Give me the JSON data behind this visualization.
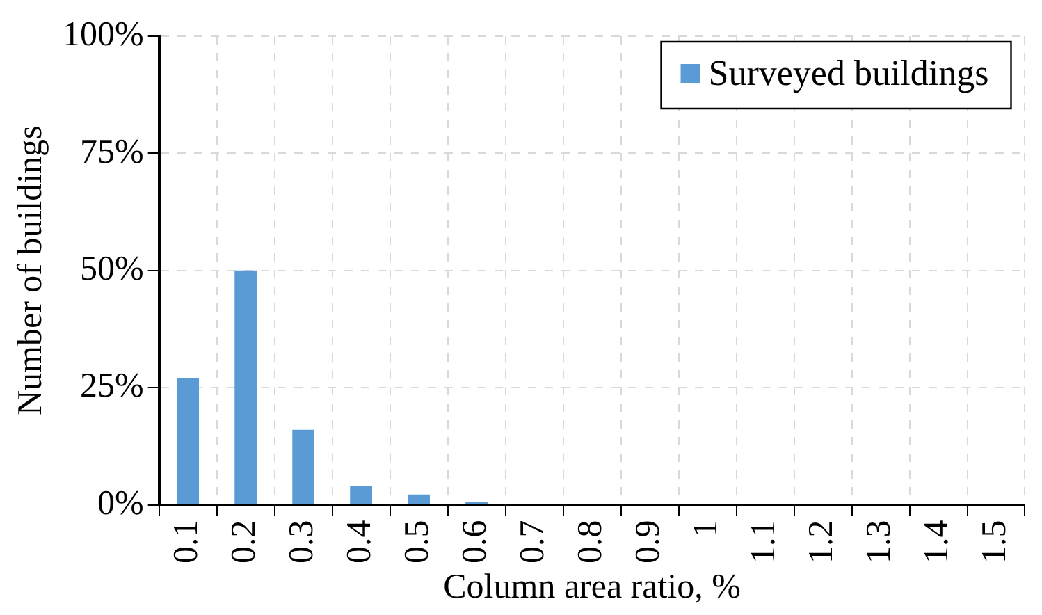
{
  "chart_data": {
    "type": "bar",
    "xlabel": "Column area ratio, %",
    "ylabel": "Number of buildings",
    "categories": [
      "0.1",
      "0.2",
      "0.3",
      "0.4",
      "0.5",
      "0.6",
      "0.7",
      "0.8",
      "0.9",
      "1",
      "1.1",
      "1.2",
      "1.3",
      "1.4",
      "1.5"
    ],
    "series": [
      {
        "name": "Surveyed buildings",
        "color": "#5b9bd5",
        "values": [
          27,
          50,
          16,
          4,
          2.2,
          0.6,
          0,
          0,
          0,
          0,
          0,
          0,
          0,
          0,
          0
        ]
      }
    ],
    "ylim": [
      0,
      100
    ],
    "yticks": [
      {
        "value": 0,
        "label": "0%"
      },
      {
        "value": 25,
        "label": "25%"
      },
      {
        "value": 50,
        "label": "50%"
      },
      {
        "value": 75,
        "label": "75%"
      },
      {
        "value": 100,
        "label": "100%"
      }
    ],
    "grid": true,
    "legend": "top right"
  }
}
